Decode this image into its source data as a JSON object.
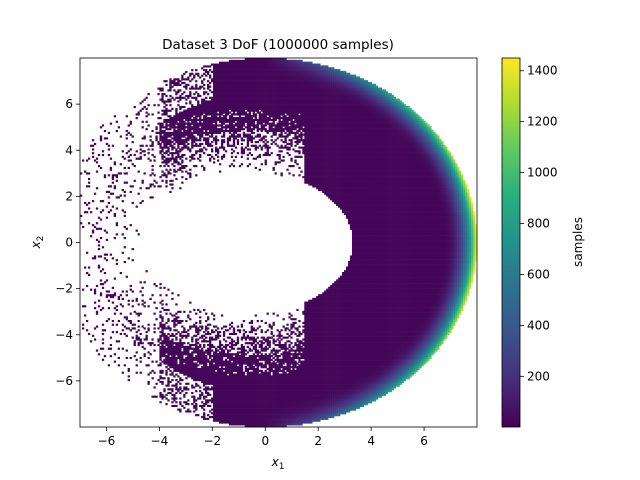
{
  "chart_data": {
    "type": "heatmap",
    "title": "Dataset 3 DoF (1000000 samples)",
    "xlabel_base": "x",
    "xlabel_sub": "1",
    "ylabel_base": "x",
    "ylabel_sub": "2",
    "xlim": [
      -7.0,
      8.0
    ],
    "ylim": [
      -8.0,
      8.0
    ],
    "x_ticks": [
      -6,
      -4,
      -2,
      0,
      2,
      4,
      6
    ],
    "y_ticks": [
      -6,
      -4,
      -2,
      0,
      2,
      4,
      6
    ],
    "x_tick_labels": [
      "−6",
      "−4",
      "−2",
      "0",
      "2",
      "4",
      "6"
    ],
    "y_tick_labels": [
      "−6",
      "−4",
      "−2",
      "0",
      "2",
      "4",
      "6"
    ],
    "grid": false,
    "colormap": "viridis",
    "colorbar": {
      "label": "samples",
      "range": [
        1,
        1450
      ],
      "ticks": [
        200,
        400,
        600,
        800,
        1000,
        1200,
        1400
      ],
      "tick_labels": [
        "200",
        "400",
        "600",
        "800",
        "1000",
        "1200",
        "1400"
      ]
    },
    "distribution": {
      "outer_radius": 8.0,
      "dense_inner_radius": 5.0,
      "peak_x": 7.9,
      "peak_count": 1450,
      "typical_count": 20,
      "note_shape": "crescent annulus open toward negative x1, empty hole centered near x1=-0.5"
    }
  }
}
